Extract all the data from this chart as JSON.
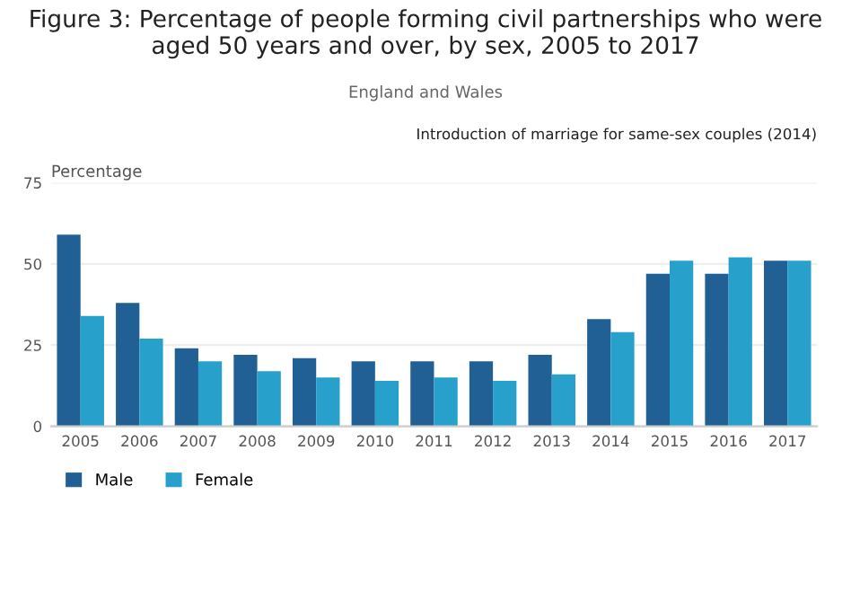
{
  "chart_data": {
    "type": "bar",
    "title": "Figure 3: Percentage of people forming civil partnerships who were aged 50 years and over, by sex, 2005 to 2017",
    "subtitle": "England and Wales",
    "ylabel": "Percentage",
    "annotations": [
      "Introduction of marriage for same-sex couples (2014)"
    ],
    "categories": [
      "2005",
      "2006",
      "2007",
      "2008",
      "2009",
      "2010",
      "2011",
      "2012",
      "2013",
      "2014",
      "2015",
      "2016",
      "2017"
    ],
    "series": [
      {
        "name": "Male",
        "color": "#206095",
        "values": [
          59,
          38,
          24,
          22,
          21,
          20,
          20,
          20,
          22,
          33,
          47,
          47,
          51
        ]
      },
      {
        "name": "Female",
        "color": "#27a0cc",
        "values": [
          34,
          27,
          20,
          17,
          15,
          14,
          15,
          14,
          16,
          29,
          51,
          52,
          51
        ]
      }
    ],
    "ylim": [
      0,
      75
    ],
    "yticks": [
      0,
      25,
      50,
      75
    ],
    "grid": "y",
    "legend": "bottom left"
  }
}
